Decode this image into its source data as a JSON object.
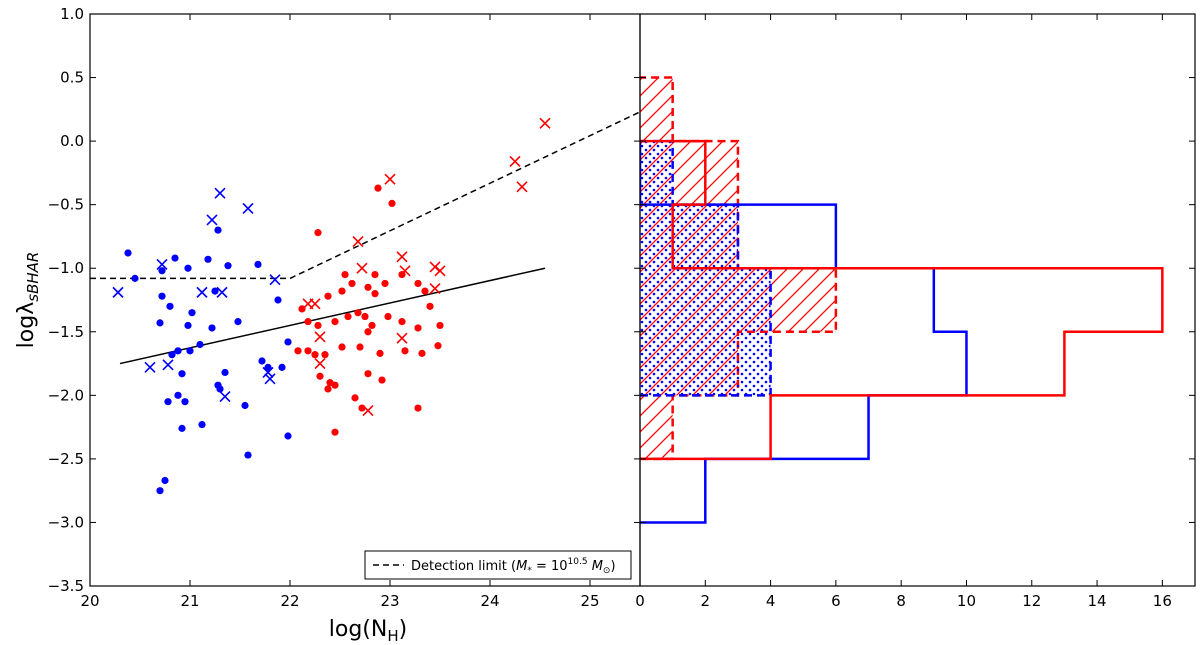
{
  "chart_data": [
    {
      "type": "scatter",
      "xlabel": "log(N_H)",
      "xlabel_main": "log(N",
      "xlabel_sub": "H",
      "xlabel_close": ")",
      "ylabel_main": "logλ",
      "ylabel_sub": "sBHAR",
      "xlim": [
        20,
        25.5
      ],
      "ylim": [
        -3.5,
        1.0
      ],
      "xticks": [
        "20",
        "21",
        "22",
        "23",
        "24",
        "25"
      ],
      "yticks": [
        "1.0",
        "0.5",
        "0.0",
        "−0.5",
        "−1.0",
        "−1.5",
        "−2.0",
        "−2.5",
        "−3.0",
        "−3.5"
      ],
      "ytick_values": [
        1.0,
        0.5,
        0.0,
        -0.5,
        -1.0,
        -1.5,
        -2.0,
        -2.5,
        -3.0,
        -3.5
      ],
      "legend": {
        "position": "lower-right",
        "label_text": "Detection limit (",
        "label_math": "M",
        "label_math_sub": "*",
        "label_eq": " = 10",
        "label_sup": "10.5",
        "label_msun": " M",
        "label_msun_sub": "⊙",
        "label_close": ")"
      },
      "colors": {
        "blue": "#0000ff",
        "red": "#ff0000",
        "line": "#000000"
      },
      "fit_line": {
        "x": [
          20.3,
          24.55
        ],
        "y": [
          -1.75,
          -1.0
        ]
      },
      "detection_limit": {
        "x": [
          20.0,
          22.0,
          25.5
        ],
        "y": [
          -1.08,
          -1.08,
          0.23
        ]
      },
      "series": [
        {
          "name": "blue-dots",
          "marker": "dot",
          "color": "#0000ff",
          "points": [
            [
              20.38,
              -0.88
            ],
            [
              20.45,
              -1.08
            ],
            [
              20.72,
              -1.02
            ],
            [
              20.85,
              -0.92
            ],
            [
              20.98,
              -1.0
            ],
            [
              21.18,
              -0.93
            ],
            [
              21.25,
              -1.18
            ],
            [
              21.28,
              -0.7
            ],
            [
              21.38,
              -0.98
            ],
            [
              21.68,
              -0.97
            ],
            [
              20.72,
              -1.22
            ],
            [
              20.8,
              -1.3
            ],
            [
              21.02,
              -1.35
            ],
            [
              20.7,
              -1.43
            ],
            [
              20.98,
              -1.45
            ],
            [
              21.22,
              -1.47
            ],
            [
              21.1,
              -1.6
            ],
            [
              21.48,
              -1.42
            ],
            [
              21.88,
              -1.25
            ],
            [
              21.98,
              -1.58
            ],
            [
              20.82,
              -1.68
            ],
            [
              20.88,
              -1.65
            ],
            [
              21.0,
              -1.65
            ],
            [
              21.35,
              -1.82
            ],
            [
              21.72,
              -1.73
            ],
            [
              21.78,
              -1.78
            ],
            [
              21.92,
              -1.78
            ],
            [
              20.92,
              -1.83
            ],
            [
              21.28,
              -1.92
            ],
            [
              21.3,
              -1.95
            ],
            [
              20.88,
              -2.0
            ],
            [
              20.78,
              -2.05
            ],
            [
              20.95,
              -2.05
            ],
            [
              21.12,
              -2.23
            ],
            [
              21.55,
              -2.08
            ],
            [
              20.92,
              -2.26
            ],
            [
              21.98,
              -2.32
            ],
            [
              21.58,
              -2.47
            ],
            [
              20.75,
              -2.67
            ],
            [
              20.7,
              -2.75
            ]
          ]
        },
        {
          "name": "blue-crosses",
          "marker": "cross",
          "color": "#0000ff",
          "points": [
            [
              20.28,
              -1.19
            ],
            [
              20.72,
              -0.97
            ],
            [
              21.3,
              -0.41
            ],
            [
              21.22,
              -0.62
            ],
            [
              21.58,
              -0.53
            ],
            [
              21.12,
              -1.19
            ],
            [
              21.32,
              -1.19
            ],
            [
              21.85,
              -1.09
            ],
            [
              20.6,
              -1.78
            ],
            [
              20.78,
              -1.76
            ],
            [
              21.78,
              -1.82
            ],
            [
              21.8,
              -1.87
            ],
            [
              21.35,
              -2.01
            ]
          ]
        },
        {
          "name": "red-dots",
          "marker": "dot",
          "color": "#ff0000",
          "points": [
            [
              22.28,
              -0.72
            ],
            [
              22.88,
              -0.37
            ],
            [
              23.02,
              -0.49
            ],
            [
              22.55,
              -1.05
            ],
            [
              22.38,
              -1.22
            ],
            [
              22.52,
              -1.18
            ],
            [
              22.62,
              -1.12
            ],
            [
              22.78,
              -1.15
            ],
            [
              22.85,
              -1.05
            ],
            [
              22.85,
              -1.2
            ],
            [
              22.95,
              -1.12
            ],
            [
              23.12,
              -1.05
            ],
            [
              23.28,
              -1.12
            ],
            [
              23.35,
              -1.18
            ],
            [
              23.4,
              -1.3
            ],
            [
              22.12,
              -1.32
            ],
            [
              22.18,
              -1.42
            ],
            [
              22.28,
              -1.45
            ],
            [
              22.45,
              -1.42
            ],
            [
              22.58,
              -1.38
            ],
            [
              22.68,
              -1.35
            ],
            [
              22.75,
              -1.38
            ],
            [
              22.82,
              -1.45
            ],
            [
              22.78,
              -1.5
            ],
            [
              22.98,
              -1.38
            ],
            [
              23.12,
              -1.42
            ],
            [
              23.28,
              -1.47
            ],
            [
              23.5,
              -1.45
            ],
            [
              22.08,
              -1.65
            ],
            [
              22.18,
              -1.65
            ],
            [
              22.25,
              -1.68
            ],
            [
              22.35,
              -1.68
            ],
            [
              22.52,
              -1.62
            ],
            [
              22.7,
              -1.62
            ],
            [
              22.9,
              -1.67
            ],
            [
              23.15,
              -1.65
            ],
            [
              23.48,
              -1.61
            ],
            [
              23.32,
              -1.67
            ],
            [
              22.3,
              -1.85
            ],
            [
              22.4,
              -1.9
            ],
            [
              22.45,
              -1.92
            ],
            [
              22.38,
              -1.95
            ],
            [
              22.78,
              -1.83
            ],
            [
              22.92,
              -1.88
            ],
            [
              22.65,
              -2.02
            ],
            [
              22.72,
              -2.1
            ],
            [
              22.45,
              -2.29
            ],
            [
              23.28,
              -2.1
            ]
          ]
        },
        {
          "name": "red-crosses",
          "marker": "cross",
          "color": "#ff0000",
          "points": [
            [
              24.55,
              0.14
            ],
            [
              24.25,
              -0.16
            ],
            [
              24.32,
              -0.36
            ],
            [
              23.0,
              -0.3
            ],
            [
              22.68,
              -0.79
            ],
            [
              22.72,
              -1.0
            ],
            [
              23.12,
              -0.91
            ],
            [
              23.15,
              -1.02
            ],
            [
              23.45,
              -0.99
            ],
            [
              23.5,
              -1.02
            ],
            [
              23.45,
              -1.16
            ],
            [
              22.18,
              -1.28
            ],
            [
              22.25,
              -1.28
            ],
            [
              22.3,
              -1.54
            ],
            [
              23.12,
              -1.55
            ],
            [
              22.3,
              -1.75
            ],
            [
              22.78,
              -2.12
            ]
          ]
        }
      ]
    },
    {
      "type": "bar",
      "orientation": "horizontal-histogram",
      "xlim": [
        0,
        17
      ],
      "ylim": [
        -3.5,
        1.0
      ],
      "xticks": [
        "0",
        "2",
        "4",
        "6",
        "8",
        "10",
        "12",
        "14",
        "16"
      ],
      "xtick_values": [
        0,
        2,
        4,
        6,
        8,
        10,
        12,
        14,
        16
      ],
      "series": [
        {
          "name": "blue-open",
          "style": "solid-outline",
          "color": "#0000ff",
          "bins": [
            [
              -3.0,
              -2.5,
              2
            ],
            [
              -2.5,
              -2.0,
              7
            ],
            [
              -2.0,
              -1.5,
              10
            ],
            [
              -1.5,
              -1.0,
              9
            ],
            [
              -1.0,
              -0.5,
              6
            ],
            [
              -0.5,
              0.0,
              0
            ]
          ]
        },
        {
          "name": "red-open",
          "style": "solid-outline",
          "color": "#ff0000",
          "bins": [
            [
              -2.5,
              -2.0,
              4
            ],
            [
              -2.0,
              -1.5,
              13
            ],
            [
              -1.5,
              -1.0,
              16
            ],
            [
              -1.0,
              -0.5,
              1
            ],
            [
              -0.5,
              0.0,
              2
            ]
          ]
        },
        {
          "name": "blue-detected",
          "style": "dotted-fill",
          "color": "#0000ff",
          "bins": [
            [
              -2.0,
              -1.5,
              4
            ],
            [
              -1.5,
              -1.0,
              4
            ],
            [
              -1.0,
              -0.5,
              3
            ],
            [
              -0.5,
              0.0,
              1
            ]
          ]
        },
        {
          "name": "red-detected",
          "style": "hatched-dashed",
          "color": "#ff0000",
          "bins": [
            [
              -2.5,
              -2.0,
              1
            ],
            [
              -2.0,
              -1.5,
              3
            ],
            [
              -1.5,
              -1.0,
              6
            ],
            [
              -1.0,
              -0.5,
              3
            ],
            [
              -0.5,
              0.0,
              3
            ],
            [
              0.0,
              0.5,
              1
            ]
          ]
        }
      ]
    }
  ]
}
